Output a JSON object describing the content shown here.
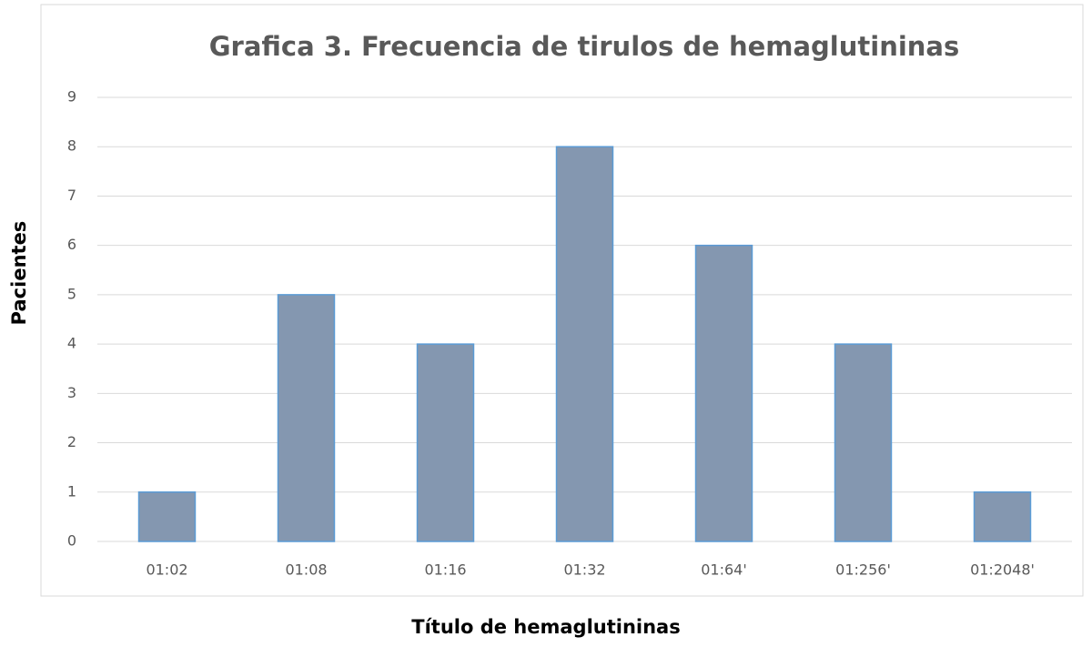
{
  "chart_data": {
    "type": "bar",
    "title": "Grafica 3. Frecuencia de tirulos de hemaglutininas",
    "x_label": "Título de hemaglutininas",
    "y_label": "Pacientes",
    "categories": [
      "01:02",
      "01:08",
      "01:16",
      "01:32",
      "01:64'",
      "01:256'",
      "01:2048'"
    ],
    "values": [
      1,
      5,
      4,
      8,
      6,
      4,
      1
    ],
    "color": "#8497b0",
    "ylim": [
      0,
      9
    ],
    "yticks": [
      0,
      1,
      2,
      3,
      4,
      5,
      6,
      7,
      8,
      9
    ],
    "grid": true
  }
}
